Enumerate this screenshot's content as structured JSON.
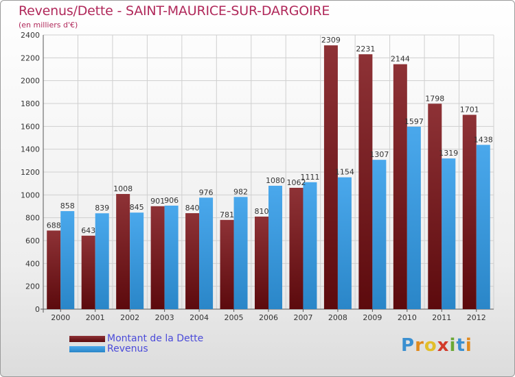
{
  "chart_data": {
    "type": "bar",
    "title": "Revenus/Dette - SAINT-MAURICE-SUR-DARGOIRE",
    "subtitle": "(en milliers d'€)",
    "categories": [
      "2000",
      "2001",
      "2002",
      "2003",
      "2004",
      "2005",
      "2006",
      "2007",
      "2008",
      "2009",
      "2010",
      "2011",
      "2012"
    ],
    "series": [
      {
        "name": "Montant de la Dette",
        "values": [
          688,
          643,
          1008,
          901,
          840,
          781,
          810,
          1062,
          2309,
          2231,
          2144,
          1798,
          1701
        ],
        "color": "#7a1a1a"
      },
      {
        "name": "Revenus",
        "values": [
          858,
          839,
          845,
          906,
          976,
          982,
          1080,
          1111,
          1154,
          1307,
          1597,
          1319,
          1438
        ],
        "color": "#3d9ee0"
      }
    ],
    "ylim": [
      0,
      2400
    ],
    "yticks": [
      0,
      200,
      400,
      600,
      800,
      1000,
      1200,
      1400,
      1600,
      1800,
      2000,
      2200,
      2400
    ],
    "grid": true,
    "legend": "bottom-left"
  },
  "logo": {
    "letters": [
      {
        "ch": "P",
        "color": "#3a8fd0"
      },
      {
        "ch": "r",
        "color": "#e08a1e"
      },
      {
        "ch": "o",
        "color": "#e2be2a"
      },
      {
        "ch": "x",
        "color": "#d23a2a"
      },
      {
        "ch": "i",
        "color": "#6aa834"
      },
      {
        "ch": "t",
        "color": "#3a8fd0"
      },
      {
        "ch": "i",
        "color": "#e08a1e"
      }
    ]
  }
}
